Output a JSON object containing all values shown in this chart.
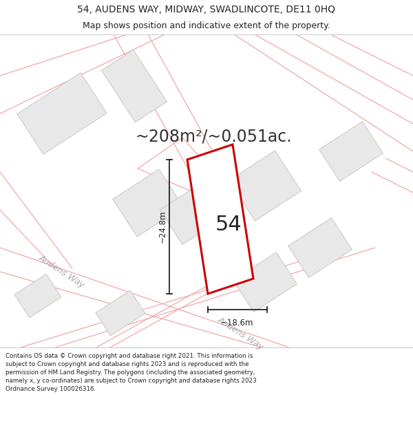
{
  "title_line1": "54, AUDENS WAY, MIDWAY, SWADLINCOTE, DE11 0HQ",
  "title_line2": "Map shows position and indicative extent of the property.",
  "area_text": "~208m²/~0.051ac.",
  "plot_number": "54",
  "dim_width": "~18.6m",
  "dim_height": "~24.8m",
  "road_label1": "Audens Way",
  "road_label2": "Audens Way",
  "footer_text": "Contains OS data © Crown copyright and database right 2021. This information is subject to Crown copyright and database rights 2023 and is reproduced with the permission of HM Land Registry. The polygons (including the associated geometry, namely x, y co-ordinates) are subject to Crown copyright and database rights 2023 Ordnance Survey 100026316.",
  "map_bg": "#f8f8f8",
  "plot_fill": "#ffffff",
  "plot_edge": "#cc0000",
  "neighbor_fill": "#e8e8e8",
  "neighbor_edge": "#d0c8c0",
  "road_line_color": "#f0a8a8",
  "parcel_line_color": "#f0a8a8",
  "dim_line_color": "#222222",
  "text_color": "#222222",
  "road_text_color": "#aaaaaa",
  "area_text_color": "#333333",
  "title_bg": "#ffffff",
  "footer_bg": "#ffffff",
  "title_fontsize": 10,
  "subtitle_fontsize": 9,
  "area_fontsize": 17,
  "plot_num_fontsize": 22,
  "dim_fontsize": 8.5,
  "road_fontsize": 9
}
